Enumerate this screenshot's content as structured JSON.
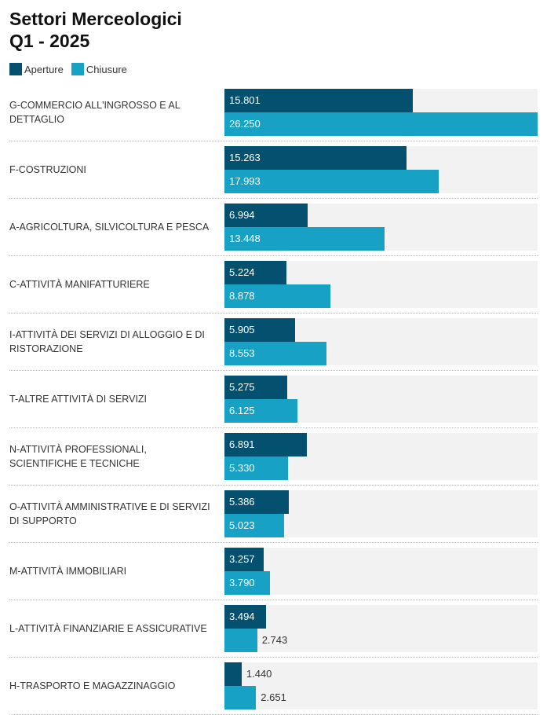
{
  "chart_data": {
    "type": "bar",
    "orientation": "horizontal",
    "title": "Settori Merceologici",
    "subtitle": "Q1 - 2025",
    "xlim": [
      0,
      26250
    ],
    "colors": {
      "Aperture": "#04506f",
      "Chiusure": "#17a2c5",
      "background": "#f2f2f2"
    },
    "categories": [
      "G-COMMERCIO ALL'INGROSSO E AL DETTAGLIO",
      "F-COSTRUZIONI",
      "A-AGRICOLTURA, SILVICOLTURA E PESCA",
      "C-ATTIVITÀ MANIFATTURIERE",
      "I-ATTIVITÀ DEI SERVIZI DI ALLOGGIO E DI RISTORAZIONE",
      "T-ALTRE ATTIVITÀ DI SERVIZI",
      "N-ATTIVITÀ PROFESSIONALI, SCIENTIFICHE E TECNICHE",
      "O-ATTIVITÀ AMMINISTRATIVE E DI SERVIZI DI SUPPORTO",
      "M-ATTIVITÀ IMMOBILIARI",
      "L-ATTIVITÀ FINANZIARIE E ASSICURATIVE",
      "H-TRASPORTO E MAGAZZINAGGIO"
    ],
    "series": [
      {
        "name": "Aperture",
        "values": [
          15801,
          15263,
          6994,
          5224,
          5905,
          5275,
          6891,
          5386,
          3257,
          3494,
          1440
        ],
        "labels": [
          "15.801",
          "15.263",
          "6.994",
          "5.224",
          "5.905",
          "5.275",
          "6.891",
          "5.386",
          "3.257",
          "3.494",
          "1.440"
        ]
      },
      {
        "name": "Chiusure",
        "values": [
          26250,
          17993,
          13448,
          8878,
          8553,
          6125,
          5330,
          5023,
          3790,
          2743,
          2651
        ],
        "labels": [
          "26.250",
          "17.993",
          "13.448",
          "8.878",
          "8.553",
          "6.125",
          "5.330",
          "5.023",
          "3.790",
          "2.743",
          "2.651"
        ]
      }
    ],
    "legend": "top-left"
  }
}
